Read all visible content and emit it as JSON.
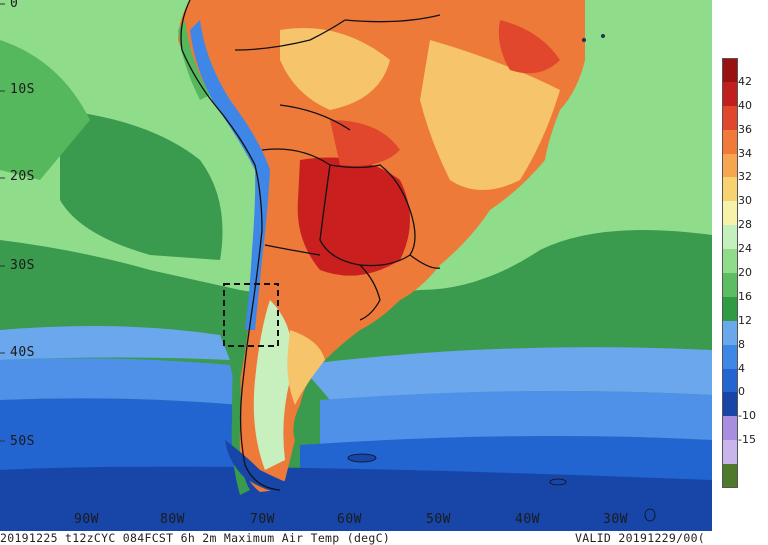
{
  "map": {
    "lat_labels": [
      {
        "text": "0",
        "lat": 0
      },
      {
        "text": "10S",
        "lat": -10
      },
      {
        "text": "20S",
        "lat": -20
      },
      {
        "text": "30S",
        "lat": -30
      },
      {
        "text": "40S",
        "lat": -40
      },
      {
        "text": "50S",
        "lat": -50
      }
    ],
    "lon_labels": [
      {
        "text": "90W",
        "lon": -90
      },
      {
        "text": "80W",
        "lon": -80
      },
      {
        "text": "70W",
        "lon": -70
      },
      {
        "text": "60W",
        "lon": -60
      },
      {
        "text": "50W",
        "lon": -50
      },
      {
        "text": "40W",
        "lon": -40
      },
      {
        "text": "30W",
        "lon": -30
      }
    ]
  },
  "footer": {
    "left": "20191225 t12zCYC 084FCST 6h 2m Maximum Air Temp (degC)",
    "right": "VALID 20191229/00("
  },
  "colorbar": {
    "segments": [
      {
        "color": "#4f7a2c"
      },
      {
        "color": "#c9b4ec"
      },
      {
        "color": "#a98ee0"
      },
      {
        "color": "#1746a8"
      },
      {
        "color": "#2265d1"
      },
      {
        "color": "#3f87e6"
      },
      {
        "color": "#6aa7ec"
      },
      {
        "color": "#2f9b45"
      },
      {
        "color": "#5cbd62"
      },
      {
        "color": "#8fdc8b"
      },
      {
        "color": "#c3f0bd"
      },
      {
        "color": "#f6f2a9"
      },
      {
        "color": "#f7d271"
      },
      {
        "color": "#f5a64f"
      },
      {
        "color": "#ef7a3a"
      },
      {
        "color": "#e0472c"
      },
      {
        "color": "#c11f1f"
      },
      {
        "color": "#9a1111"
      }
    ],
    "ticks": [
      "42",
      "40",
      "36",
      "34",
      "32",
      "30",
      "28",
      "24",
      "20",
      "16",
      "12",
      "8",
      "4",
      "0",
      "-10",
      "-15"
    ]
  },
  "colors": {
    "ocean_deep": "#1746a8",
    "ocean_mid": "#2265d1",
    "ocean_light": "#4f91e8",
    "ocean_pale": "#7ab3ef",
    "sea_green_dark": "#2f9b45",
    "sea_green": "#56b85c",
    "sea_green_light": "#8fdc8b",
    "land_hot": "#c91f1f",
    "land_warm": "#ee7a3a",
    "land_mild": "#f6c46a",
    "land_cool": "#c8f0bf",
    "andes_cold": "#3f87e6",
    "border": "#111111"
  }
}
